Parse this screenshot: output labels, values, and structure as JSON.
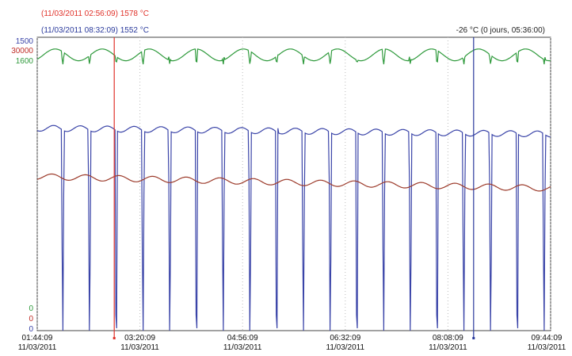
{
  "chart_data": {
    "type": "line",
    "cursors": [
      {
        "label": "(11/03/2011 02:56:09) 1578 °C",
        "color": "#e0322a",
        "time": "02:56:09"
      },
      {
        "label": "(11/03/2011 08:32:09) 1552 °C",
        "color": "#2a3a9c",
        "time": "08:32:09"
      }
    ],
    "delta_label": "-26 °C (0 jours, 05:36:00)",
    "y_axes": [
      {
        "top": "1500",
        "bottom": "0",
        "color": "#3a44a8"
      },
      {
        "top": "30000",
        "bottom": "0",
        "color": "#c0302a"
      },
      {
        "top": "1600",
        "bottom": "0",
        "color": "#2f9a3c"
      }
    ],
    "x_ticks": [
      {
        "time": "01:44:09",
        "date": "11/03/2011"
      },
      {
        "time": "03:20:09",
        "date": "11/03/2011"
      },
      {
        "time": "04:56:09",
        "date": "11/03/2011"
      },
      {
        "time": "06:32:09",
        "date": "11/03/2011"
      },
      {
        "time": "08:08:09",
        "date": "11/03/2011"
      },
      {
        "time": "09:44:09",
        "date": "11/03/2011"
      }
    ],
    "x_start": "01:44:09",
    "x_end": "09:44:09",
    "series": [
      {
        "color": "#2f9a3c",
        "start_min": 0,
        "interval_min": 25,
        "count": 20,
        "base": 0.06,
        "dip": 0.035
      },
      {
        "color": "#3a44a8",
        "start_min": 0,
        "interval_min": 25,
        "count": 20,
        "base": 0.31,
        "dip": 1.0
      },
      {
        "color": "#9c3a2a",
        "start_min": 0,
        "interval_min": 25,
        "count": 20,
        "base": 0.475,
        "dip": 0.0
      }
    ],
    "grid": true
  }
}
